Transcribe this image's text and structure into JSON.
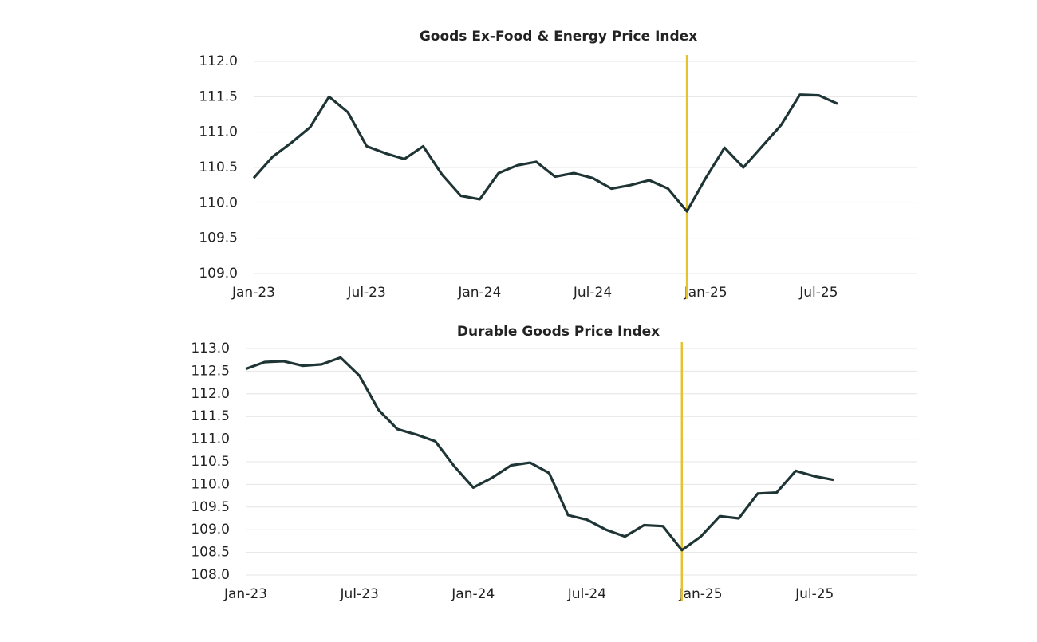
{
  "chart_data": [
    {
      "type": "line",
      "title": "Goods Ex-Food & Energy Price Index",
      "categories": [
        "Jan-23",
        null,
        null,
        null,
        null,
        null,
        "Jul-23",
        null,
        null,
        null,
        null,
        null,
        "Jan-24",
        null,
        null,
        null,
        null,
        null,
        "Jul-24",
        null,
        null,
        null,
        null,
        null,
        "Jan-25",
        null,
        null,
        null,
        null,
        null,
        "Jul-25",
        null
      ],
      "series": [
        {
          "color": "#1f3535",
          "values": [
            110.35,
            110.65,
            110.85,
            111.07,
            111.5,
            111.28,
            110.8,
            110.7,
            110.62,
            110.8,
            110.4,
            110.1,
            110.05,
            110.42,
            110.53,
            110.58,
            110.37,
            110.42,
            110.35,
            110.2,
            110.25,
            110.32,
            110.2,
            109.88,
            110.35,
            110.78,
            110.5,
            110.8,
            111.1,
            111.53,
            111.52,
            111.4
          ]
        }
      ],
      "ylim": [
        109.0,
        112.0
      ],
      "yticks": [
        {
          "value": 109.0,
          "label": "109.0"
        },
        {
          "value": 109.5,
          "label": "109.5"
        },
        {
          "value": 110.0,
          "label": "110.0"
        },
        {
          "value": 110.5,
          "label": "110.5"
        },
        {
          "value": 111.0,
          "label": "111.0"
        },
        {
          "value": 111.5,
          "label": "111.5"
        },
        {
          "value": 112.0,
          "label": "112.0"
        }
      ],
      "grid": true,
      "vline_at": 23,
      "vline_color": "#e8c22c"
    },
    {
      "type": "line",
      "title": "Durable Goods Price Index",
      "categories": [
        "Jan-23",
        null,
        null,
        null,
        null,
        null,
        "Jul-23",
        null,
        null,
        null,
        null,
        null,
        "Jan-24",
        null,
        null,
        null,
        null,
        null,
        "Jul-24",
        null,
        null,
        null,
        null,
        null,
        "Jan-25",
        null,
        null,
        null,
        null,
        null,
        "Jul-25",
        null
      ],
      "series": [
        {
          "color": "#1f3535",
          "values": [
            112.55,
            112.7,
            112.72,
            112.62,
            112.65,
            112.8,
            112.4,
            111.65,
            111.22,
            111.1,
            110.95,
            110.4,
            109.93,
            110.15,
            110.42,
            110.48,
            110.25,
            109.32,
            109.22,
            109.0,
            108.85,
            109.1,
            109.08,
            108.55,
            108.85,
            109.3,
            109.25,
            109.8,
            109.82,
            110.3,
            110.18,
            110.1
          ]
        }
      ],
      "ylim": [
        108.0,
        113.0
      ],
      "yticks": [
        {
          "value": 108.0,
          "label": "108.0"
        },
        {
          "value": 108.5,
          "label": "108.5"
        },
        {
          "value": 109.0,
          "label": "109.0"
        },
        {
          "value": 109.5,
          "label": "109.5"
        },
        {
          "value": 110.0,
          "label": "110.0"
        },
        {
          "value": 110.5,
          "label": "110.5"
        },
        {
          "value": 111.0,
          "label": "111.0"
        },
        {
          "value": 111.5,
          "label": "111.5"
        },
        {
          "value": 112.0,
          "label": "112.0"
        },
        {
          "value": 112.5,
          "label": "112.5"
        },
        {
          "value": 113.0,
          "label": "113.0"
        }
      ],
      "grid": true,
      "vline_at": 23,
      "vline_color": "#e8c22c"
    }
  ]
}
